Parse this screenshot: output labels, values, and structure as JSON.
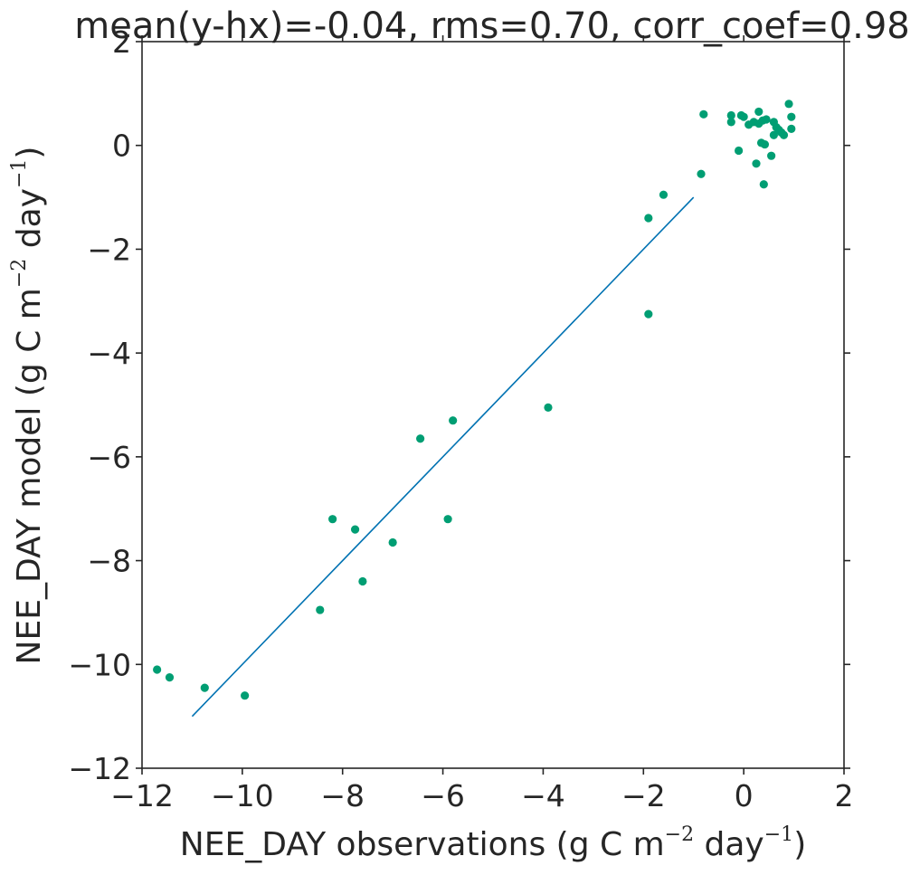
{
  "chart_data": {
    "type": "scatter",
    "title": "mean(y-hx)=-0.04, rms=0.70, corr_coef=0.98",
    "xlabel": {
      "main": "NEE_DAY observations (g C m",
      "exp1": "−2",
      "mid": " day",
      "exp2": "−1",
      "end": ")"
    },
    "ylabel": {
      "main": "NEE_DAY model (g C m",
      "exp1": "−2",
      "mid": " day",
      "exp2": "−1",
      "end": ")"
    },
    "xlim": [
      -12,
      2
    ],
    "ylim": [
      -12,
      2
    ],
    "xticks": [
      -12,
      -10,
      -8,
      -6,
      -4,
      -2,
      0,
      2
    ],
    "yticks": [
      -12,
      -10,
      -8,
      -6,
      -4,
      -2,
      0,
      2
    ],
    "xtick_labels": [
      "−12",
      "−10",
      "−8",
      "−6",
      "−4",
      "−2",
      "0",
      "2"
    ],
    "ytick_labels": [
      "−12",
      "−10",
      "−8",
      "−6",
      "−4",
      "−2",
      "0",
      "2"
    ],
    "grid": false,
    "point_color": "#009e73",
    "line_color": "#0072b2",
    "reference_line": {
      "x": [
        -11,
        -1
      ],
      "y": [
        -11,
        -1
      ]
    },
    "points": [
      {
        "x": -11.7,
        "y": -10.1
      },
      {
        "x": -11.45,
        "y": -10.25
      },
      {
        "x": -10.75,
        "y": -10.45
      },
      {
        "x": -9.95,
        "y": -10.6
      },
      {
        "x": -8.45,
        "y": -8.95
      },
      {
        "x": -8.2,
        "y": -7.2
      },
      {
        "x": -7.75,
        "y": -7.4
      },
      {
        "x": -7.6,
        "y": -8.4
      },
      {
        "x": -7.0,
        "y": -7.65
      },
      {
        "x": -6.45,
        "y": -5.65
      },
      {
        "x": -5.9,
        "y": -7.2
      },
      {
        "x": -5.8,
        "y": -5.3
      },
      {
        "x": -3.9,
        "y": -5.05
      },
      {
        "x": -1.9,
        "y": -1.4
      },
      {
        "x": -1.9,
        "y": -3.25
      },
      {
        "x": -1.6,
        "y": -0.95
      },
      {
        "x": -0.85,
        "y": -0.55
      },
      {
        "x": -0.8,
        "y": 0.6
      },
      {
        "x": -0.25,
        "y": 0.58
      },
      {
        "x": -0.25,
        "y": 0.45
      },
      {
        "x": -0.1,
        "y": -0.1
      },
      {
        "x": -0.05,
        "y": 0.58
      },
      {
        "x": 0.0,
        "y": 0.55
      },
      {
        "x": 0.1,
        "y": 0.4
      },
      {
        "x": 0.2,
        "y": 0.45
      },
      {
        "x": 0.25,
        "y": -0.35
      },
      {
        "x": 0.3,
        "y": 0.65
      },
      {
        "x": 0.3,
        "y": 0.42
      },
      {
        "x": 0.35,
        "y": 0.05
      },
      {
        "x": 0.38,
        "y": 0.48
      },
      {
        "x": 0.4,
        "y": -0.75
      },
      {
        "x": 0.42,
        "y": 0.02
      },
      {
        "x": 0.45,
        "y": 0.5
      },
      {
        "x": 0.55,
        "y": -0.2
      },
      {
        "x": 0.6,
        "y": 0.45
      },
      {
        "x": 0.6,
        "y": 0.2
      },
      {
        "x": 0.65,
        "y": 0.35
      },
      {
        "x": 0.7,
        "y": 0.3
      },
      {
        "x": 0.75,
        "y": 0.25
      },
      {
        "x": 0.8,
        "y": 0.2
      },
      {
        "x": 0.9,
        "y": 0.8
      },
      {
        "x": 0.95,
        "y": 0.55
      },
      {
        "x": 0.95,
        "y": 0.32
      }
    ]
  }
}
